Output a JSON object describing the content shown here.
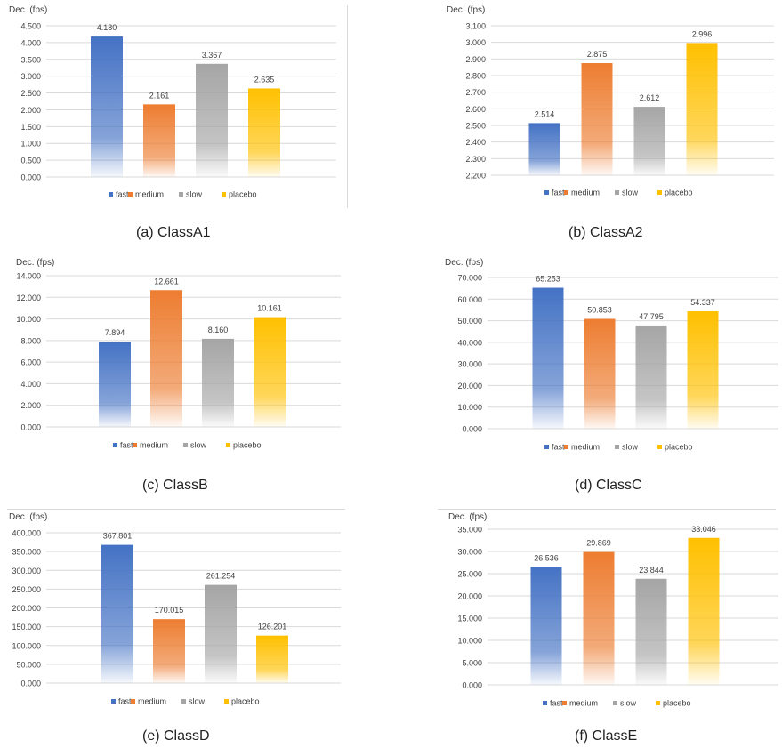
{
  "captions": [
    "(a)  ClassA1",
    "(b)  ClassA2",
    "(c)  ClassB",
    "(d)  ClassC",
    "(e)  ClassD",
    "(f)  ClassE"
  ],
  "legend": [
    "fast",
    "medium",
    "slow",
    "placebo"
  ],
  "colors": {
    "fast": "#4472c4",
    "medium": "#ed7d31",
    "slow": "#a5a5a5",
    "placebo": "#ffc000",
    "grid": "#d9d9d9",
    "text": "#404040"
  },
  "chart_data": [
    {
      "type": "bar",
      "ylabel": "Dec. (fps)",
      "categories": [
        "fast",
        "medium",
        "slow",
        "placebo"
      ],
      "values": [
        4.18,
        2.161,
        3.367,
        2.635
      ],
      "data_labels": [
        "4.180",
        "2.161",
        "3.367",
        "2.635"
      ],
      "yticks": [
        "0.000",
        "0.500",
        "1.000",
        "1.500",
        "2.000",
        "2.500",
        "3.000",
        "3.500",
        "4.000",
        "4.500"
      ],
      "ylim": [
        0,
        4.5
      ],
      "grid": true,
      "legend": "bottom"
    },
    {
      "type": "bar",
      "ylabel": "Dec. (fps)",
      "categories": [
        "fast",
        "medium",
        "slow",
        "placebo"
      ],
      "values": [
        2.514,
        2.875,
        2.612,
        2.996
      ],
      "data_labels": [
        "2.514",
        "2.875",
        "2.612",
        "2.996"
      ],
      "yticks": [
        "2.200",
        "2.300",
        "2.400",
        "2.500",
        "2.600",
        "2.700",
        "2.800",
        "2.900",
        "3.000",
        "3.100"
      ],
      "ylim": [
        2.2,
        3.1
      ],
      "grid": true,
      "legend": "bottom"
    },
    {
      "type": "bar",
      "ylabel": "Dec. (fps)",
      "categories": [
        "fast",
        "medium",
        "slow",
        "placebo"
      ],
      "values": [
        7.894,
        12.661,
        8.16,
        10.161
      ],
      "data_labels": [
        "7.894",
        "12.661",
        "8.160",
        "10.161"
      ],
      "yticks": [
        "0.000",
        "2.000",
        "4.000",
        "6.000",
        "8.000",
        "10.000",
        "12.000",
        "14.000"
      ],
      "ylim": [
        0,
        14
      ],
      "grid": true,
      "legend": "bottom"
    },
    {
      "type": "bar",
      "ylabel": "Dec. (fps)",
      "categories": [
        "fast",
        "medium",
        "slow",
        "placebo"
      ],
      "values": [
        65.253,
        50.853,
        47.795,
        54.337
      ],
      "data_labels": [
        "65.253",
        "50.853",
        "47.795",
        "54.337"
      ],
      "yticks": [
        "0.000",
        "10.000",
        "20.000",
        "30.000",
        "40.000",
        "50.000",
        "60.000",
        "70.000"
      ],
      "ylim": [
        0,
        70
      ],
      "grid": true,
      "legend": "bottom"
    },
    {
      "type": "bar",
      "ylabel": "Dec. (fps)",
      "categories": [
        "fast",
        "medium",
        "slow",
        "placebo"
      ],
      "values": [
        367.801,
        170.015,
        261.254,
        126.201
      ],
      "data_labels": [
        "367.801",
        "170.015",
        "261.254",
        "126.201"
      ],
      "yticks": [
        "0.000",
        "50.000",
        "100.000",
        "150.000",
        "200.000",
        "250.000",
        "300.000",
        "350.000",
        "400.000"
      ],
      "ylim": [
        0,
        400
      ],
      "grid": true,
      "legend": "bottom"
    },
    {
      "type": "bar",
      "ylabel": "Dec. (fps)",
      "categories": [
        "fast",
        "medium",
        "slow",
        "placebo"
      ],
      "values": [
        26.536,
        29.869,
        23.844,
        33.046
      ],
      "data_labels": [
        "26.536",
        "29.869",
        "23.844",
        "33.046"
      ],
      "yticks": [
        "0.000",
        "5.000",
        "10.000",
        "15.000",
        "20.000",
        "25.000",
        "30.000",
        "35.000"
      ],
      "ylim": [
        0,
        35
      ],
      "grid": true,
      "legend": "bottom"
    }
  ]
}
